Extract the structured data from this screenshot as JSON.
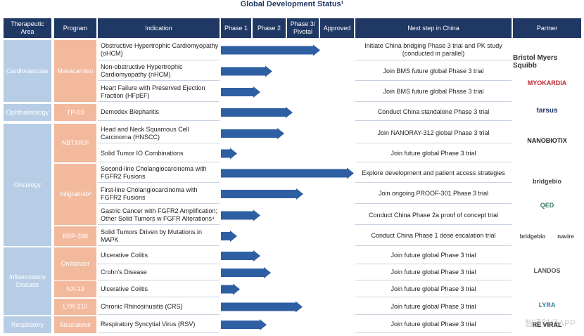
{
  "title": "Global Development Status¹",
  "header": [
    "Therapeutic Area",
    "Program",
    "Indication",
    "Phase 1",
    "Phase 2",
    "Phase 3/ Pivotal",
    "Approved",
    "Next step in China",
    "Partner"
  ],
  "areas": [
    "Cardiovascular",
    "Ophthalmology",
    "Oncology",
    "Inflammatory Disease",
    "Respiratory"
  ],
  "programs": [
    "Mavacamten",
    "TP-03",
    "NBTXR3²",
    "Infigratinib³",
    "BBP-398",
    "Omilancor",
    "NX-13",
    "LYR-210",
    "Sisunatovir"
  ],
  "rows": [
    {
      "indication": "Obstructive Hypertrophic Cardiomyopathy (oHCM)",
      "next_step": "Initiate China bridging Phase 3 trial and PK study (conducted in parallel)"
    },
    {
      "indication": "Non-obstructive Hypertrophic Cardiomyopathy (nHCM)",
      "next_step": "Join BMS future global Phase 3 trial"
    },
    {
      "indication": "Heart Failure with Preserved Ejection Fraction (HFpEF)",
      "next_step": "Join BMS future global Phase 3 trial"
    },
    {
      "indication": "Demodex Blepharitis",
      "next_step": "Conduct China standalone Phase 3 trial"
    },
    {
      "indication": "Head and Neck Squamous Cell Carcinoma (HNSCC)",
      "next_step": "Join NANORAY-312 global Phase 3 trial"
    },
    {
      "indication": "Solid Tumor IO Combinations",
      "next_step": "Join future global Phase 3 trial"
    },
    {
      "indication": "Second-line Cholangiocarcinoma with FGFR2 Fusions",
      "next_step": "Explore development and patient access strategies"
    },
    {
      "indication": "First-line Cholangiocarcinoma with FGFR2 Fusions",
      "next_step": "Join ongoing PROOF-301 Phase 3 trial"
    },
    {
      "indication": "Gastric Cancer with FGFR2 Amplification; Other Solid Tumors w FGFR Alterations⁴",
      "next_step": "Conduct China Phase 2a proof of concept trial"
    },
    {
      "indication": "Solid Tumors Driven by Mutations in MAPK",
      "next_step": "Conduct China Phase 1 dose escalation trial"
    },
    {
      "indication": "Ulcerative Colitis",
      "next_step": "Join future global Phase 3 trial"
    },
    {
      "indication": "Crohn's Disease",
      "next_step": "Join future global Phase 3 trial"
    },
    {
      "indication": "Ulcerative Colitis",
      "next_step": "Join future global Phase 3 trial"
    },
    {
      "indication": "Chronic Rhinosinusitis (CRS)",
      "next_step": "Join future global Phase 3 trial"
    },
    {
      "indication": "Respiratory Syncytial Virus (RSV)",
      "next_step": "Join future global Phase 3 trial"
    }
  ],
  "partners": [
    "Bristol Myers Squibb",
    "MYOKARDIA",
    "tarsus",
    "NANOBIOTIX",
    "bridgebio",
    "QED",
    "bridgebio",
    "navire",
    "LANDOS",
    "LYRA",
    "RE VIRAL"
  ],
  "watermark": "智通财经APP"
}
